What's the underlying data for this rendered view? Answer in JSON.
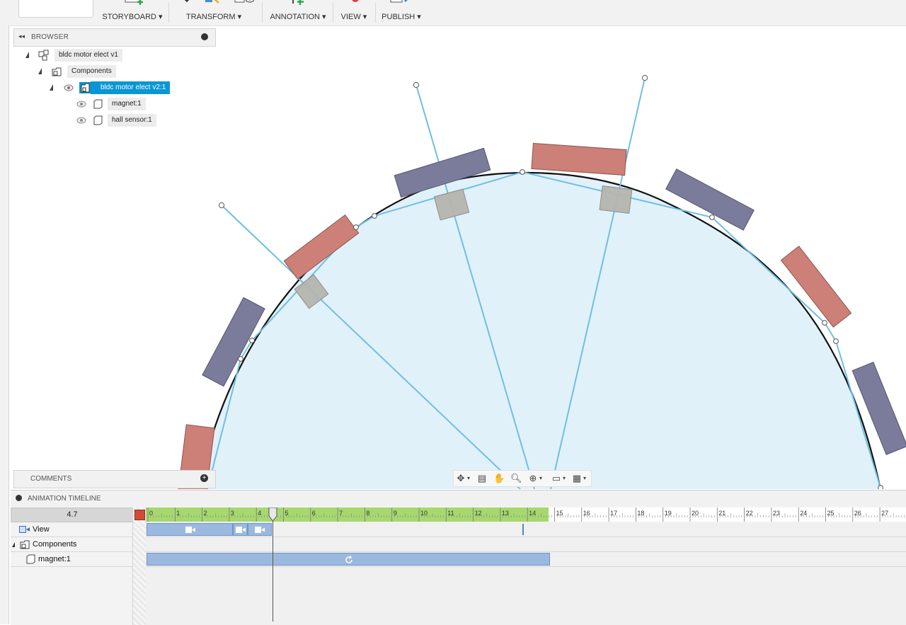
{
  "toolbar": {
    "groups": [
      {
        "label": "STORYBOARD ▾",
        "icon": "new-storyboard-icon"
      },
      {
        "label": "TRANSFORM ▾",
        "icon": "transform-icon"
      },
      {
        "label": "ANNOTATION ▾",
        "icon": "annotation-icon"
      },
      {
        "label": "VIEW ▾",
        "icon": "record-icon"
      },
      {
        "label": "PUBLISH ▾",
        "icon": "publish-video-icon"
      }
    ]
  },
  "browser": {
    "title": "BROWSER",
    "items": [
      {
        "label": "bldc motor elect v1",
        "icon": "assembly-icon"
      },
      {
        "label": "Components",
        "icon": "components-folder-icon"
      },
      {
        "label": "bldc motor elect v2:1",
        "icon": "component-icon",
        "selected": true
      },
      {
        "label": "magnet:1",
        "icon": "body-icon"
      },
      {
        "label": "hall sensor:1",
        "icon": "body-icon"
      }
    ]
  },
  "comments": {
    "title": "COMMENTS"
  },
  "timeline": {
    "title": "ANIMATION TIMELINE",
    "current_time": "4.7",
    "ruler_min": 0,
    "ruler_max": 28,
    "active_end": 14.7,
    "rows": [
      {
        "label": "View",
        "icon": "view-camera-icon"
      },
      {
        "label": "Components",
        "icon": "components-folder-icon"
      },
      {
        "label": "magnet:1",
        "icon": "body-icon"
      }
    ]
  },
  "colors": {
    "accent": "#0a96d6",
    "magnet_red": "#cd8077",
    "magnet_blue": "#7b7c9c",
    "hall_sensor": "#b4b4ae",
    "rotor_fill": "#e1f1fa",
    "construction_line": "#6fbfe0",
    "timeline_active": "#a6d86f",
    "clip": "#9bb9de"
  }
}
